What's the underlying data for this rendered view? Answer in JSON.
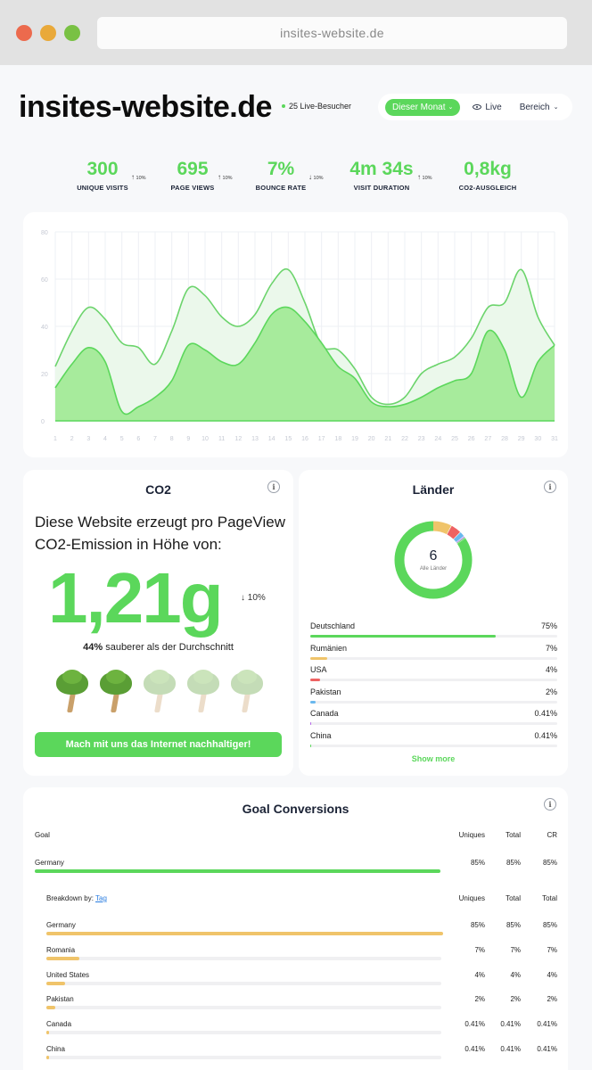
{
  "browser": {
    "url": "insites-website.de"
  },
  "header": {
    "title": "insites-website.de",
    "live_visitors": "25 Live-Besucher",
    "period_button": "Dieser Monat",
    "live_button": "Live",
    "range_button": "Bereich"
  },
  "stats": [
    {
      "value": "300",
      "label": "UNIQUE VISITS",
      "change": "10%",
      "direction": "up"
    },
    {
      "value": "695",
      "label": "PAGE VIEWS",
      "change": "10%",
      "direction": "up"
    },
    {
      "value": "7%",
      "label": "BOUNCE RATE",
      "change": "10%",
      "direction": "down"
    },
    {
      "value": "4m 34s",
      "label": "VISIT DURATION",
      "change": "10%",
      "direction": "up"
    },
    {
      "value": "0,8kg",
      "label": "CO2-AUSGLEICH"
    }
  ],
  "chart_data": {
    "type": "area",
    "title": "",
    "xlabel": "",
    "ylabel": "",
    "x": [
      1,
      2,
      3,
      4,
      5,
      6,
      7,
      8,
      9,
      10,
      11,
      12,
      13,
      14,
      15,
      16,
      17,
      18,
      19,
      20,
      21,
      22,
      23,
      24,
      25,
      26,
      27,
      28,
      29,
      30,
      31
    ],
    "ylim": [
      0,
      80
    ],
    "yticks": [
      0,
      20,
      40,
      60,
      80
    ],
    "grid": true,
    "series": [
      {
        "name": "page-views",
        "color": "#eaf8ea",
        "stroke": "#6cd46c",
        "values": [
          23,
          38,
          48,
          43,
          33,
          31,
          24,
          38,
          56,
          53,
          44,
          40,
          45,
          58,
          64,
          50,
          32,
          30,
          22,
          10,
          7,
          10,
          20,
          24,
          27,
          35,
          48,
          50,
          64,
          44,
          32
        ]
      },
      {
        "name": "unique-visits",
        "color": "#a3ea98",
        "stroke": "#5bd75b",
        "values": [
          14,
          24,
          31,
          25,
          4,
          6,
          10,
          17,
          32,
          30,
          25,
          24,
          33,
          45,
          48,
          42,
          33,
          23,
          18,
          8,
          6,
          7,
          10,
          14,
          17,
          20,
          38,
          30,
          10,
          25,
          32
        ]
      }
    ]
  },
  "co2": {
    "title": "CO2",
    "description_line1": "Diese Website erzeugt pro PageView",
    "description_line2": "CO2-Emission in Höhe von:",
    "value": "1,21g",
    "change": "10%",
    "cleaner_pct": "44%",
    "cleaner_text": "sauberer als der Durchschnitt",
    "trees_total": 5,
    "trees_active": 2,
    "cta": "Mach mit uns das Internet nachhaltiger!"
  },
  "countries": {
    "title": "Länder",
    "total": "6",
    "total_label": "Alle Länder",
    "items": [
      {
        "name": "Deutschland",
        "pct": "75%",
        "value": 75,
        "color": "#5bd75b"
      },
      {
        "name": "Rumänien",
        "pct": "7%",
        "value": 7,
        "color": "#f0c46a"
      },
      {
        "name": "USA",
        "pct": "4%",
        "value": 4,
        "color": "#ee6262"
      },
      {
        "name": "Pakistan",
        "pct": "2%",
        "value": 2,
        "color": "#6ab8ee"
      },
      {
        "name": "Canada",
        "pct": "0.41%",
        "value": 0.41,
        "color": "#b565e8"
      },
      {
        "name": "China",
        "pct": "0.41%",
        "value": 0.41,
        "color": "#5bd75b"
      }
    ],
    "show_more": "Show more"
  },
  "goals": {
    "title": "Goal Conversions",
    "headers": {
      "goal": "Goal",
      "uniques": "Uniques",
      "total": "Total",
      "cr": "CR"
    },
    "goal_row": {
      "name": "Germany",
      "uniques": "85%",
      "total": "85%",
      "cr": "85%",
      "value": 85
    },
    "breakdown_label": "Breakdown by:",
    "breakdown_link": "Tag",
    "breakdown_headers": {
      "uniques": "Uniques",
      "total": "Total",
      "total2": "Total"
    },
    "breakdown": [
      {
        "name": "Germany",
        "uniques": "85%",
        "total": "85%",
        "total2": "85%",
        "value": 85
      },
      {
        "name": "Romania",
        "uniques": "7%",
        "total": "7%",
        "total2": "7%",
        "value": 7
      },
      {
        "name": "United States",
        "uniques": "4%",
        "total": "4%",
        "total2": "4%",
        "value": 4
      },
      {
        "name": "Pakistan",
        "uniques": "2%",
        "total": "2%",
        "total2": "2%",
        "value": 2
      },
      {
        "name": "Canada",
        "uniques": "0.41%",
        "total": "0.41%",
        "total2": "0.41%",
        "value": 0.41
      },
      {
        "name": "China",
        "uniques": "0.41%",
        "total": "0.41%",
        "total2": "0.41%",
        "value": 0.41
      }
    ]
  }
}
